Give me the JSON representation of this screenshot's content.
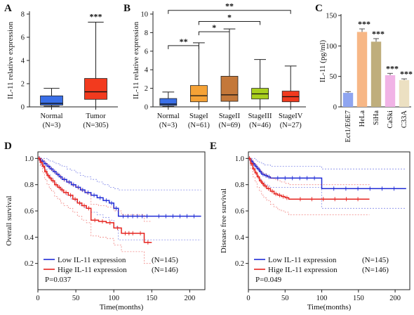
{
  "panels": {
    "a": "A",
    "b": "B",
    "c": "C",
    "d": "D",
    "e": "E"
  },
  "chart_data": [
    {
      "id": "A",
      "type": "box",
      "ylabel": "IL-11 relative expression",
      "ylim": [
        0,
        8
      ],
      "yticks": [
        0,
        2,
        4,
        6,
        8
      ],
      "categories": [
        "Normal",
        "Tumor"
      ],
      "category_n": [
        "(N=3)",
        "(N=305)"
      ],
      "colors": [
        "#3a6fe8",
        "#f23a1e"
      ],
      "boxes": [
        {
          "min": 0.05,
          "q1": 0.15,
          "median": 0.3,
          "q3": 0.95,
          "max": 1.6
        },
        {
          "min": 0.0,
          "q1": 0.65,
          "median": 1.3,
          "q3": 2.45,
          "max": 7.3
        }
      ],
      "annotations": [
        {
          "text": "***",
          "over": 1
        }
      ]
    },
    {
      "id": "B",
      "type": "box",
      "ylabel": "IL-11 relative expression",
      "ylim": [
        0,
        10
      ],
      "yticks": [
        0,
        2,
        4,
        6,
        8,
        10
      ],
      "categories": [
        "Normal",
        "StageI",
        "StageII",
        "StageIII",
        "StageIV"
      ],
      "category_n": [
        "(N=3)",
        "(N=61)",
        "(N=69)",
        "(N=46)",
        "(N=27)"
      ],
      "colors": [
        "#3a6fe8",
        "#f5a236",
        "#c4783a",
        "#a8cf1e",
        "#f03a1e"
      ],
      "boxes": [
        {
          "min": 0.05,
          "q1": 0.15,
          "median": 0.3,
          "q3": 0.9,
          "max": 1.6
        },
        {
          "min": 0.0,
          "q1": 0.55,
          "median": 1.2,
          "q3": 2.3,
          "max": 6.9
        },
        {
          "min": 0.0,
          "q1": 0.6,
          "median": 1.3,
          "q3": 3.3,
          "max": 8.4
        },
        {
          "min": 0.0,
          "q1": 0.85,
          "median": 1.4,
          "q3": 2.0,
          "max": 5.1
        },
        {
          "min": 0.0,
          "q1": 0.55,
          "median": 1.1,
          "q3": 1.7,
          "max": 4.4
        }
      ],
      "brackets": [
        {
          "from": 0,
          "to": 1,
          "text": "**",
          "level": 6.6
        },
        {
          "from": 1,
          "to": 2,
          "text": "*",
          "level": 8.1
        },
        {
          "from": 1,
          "to": 3,
          "text": "*",
          "level": 9.2
        },
        {
          "from": 0,
          "to": 4,
          "text": "**",
          "level": 10.4
        }
      ]
    },
    {
      "id": "C",
      "type": "bar",
      "ylabel": "IL-11 (pg/ml)",
      "ylim": [
        0,
        150
      ],
      "yticks": [
        0,
        50,
        100,
        150
      ],
      "categories": [
        "Ect1/E6E7",
        "HeLa",
        "SiHa",
        "CaSki",
        "C33A"
      ],
      "values": [
        23,
        123,
        107,
        52,
        44
      ],
      "errors": [
        2,
        5,
        5,
        3,
        2
      ],
      "colors": [
        "#8fa5f0",
        "#f7b786",
        "#bfae7c",
        "#f1b3e6",
        "#ece0c2"
      ],
      "annotations": [
        "",
        "***",
        "***",
        "***",
        "***"
      ]
    },
    {
      "id": "D",
      "type": "line",
      "subtype": "kaplan-meier",
      "xlabel": "Time(months)",
      "ylabel": "Overall survival",
      "xlim": [
        0,
        220
      ],
      "ylim": [
        0,
        1.05
      ],
      "xticks": [
        0,
        50,
        100,
        150,
        200
      ],
      "yticks": [
        0.2,
        0.4,
        0.6,
        0.8,
        1.0
      ],
      "pvalue": "P=0.037",
      "series": [
        {
          "name": "Low IL-11 expression",
          "n": "(N=145)",
          "color": "#1f2bd6",
          "x": [
            0,
            4,
            8,
            12,
            16,
            20,
            24,
            28,
            32,
            38,
            44,
            50,
            56,
            62,
            70,
            78,
            86,
            94,
            100,
            106,
            150,
            215
          ],
          "y": [
            1.0,
            0.98,
            0.96,
            0.94,
            0.92,
            0.9,
            0.88,
            0.86,
            0.84,
            0.82,
            0.8,
            0.78,
            0.76,
            0.74,
            0.72,
            0.7,
            0.68,
            0.66,
            0.62,
            0.56,
            0.56,
            0.56
          ],
          "ci_upper": [
            1.0,
            1.0,
            1.0,
            0.99,
            0.98,
            0.97,
            0.96,
            0.95,
            0.94,
            0.92,
            0.91,
            0.89,
            0.87,
            0.86,
            0.84,
            0.82,
            0.8,
            0.78,
            0.77,
            0.76,
            0.76,
            0.76
          ],
          "ci_lower": [
            1.0,
            0.95,
            0.92,
            0.88,
            0.85,
            0.82,
            0.8,
            0.77,
            0.74,
            0.72,
            0.69,
            0.67,
            0.64,
            0.62,
            0.59,
            0.57,
            0.55,
            0.53,
            0.48,
            0.38,
            0.38,
            0.38
          ]
        },
        {
          "name": "Hige IL-11 expression",
          "n": "(N=146)",
          "color": "#e5231e",
          "x": [
            0,
            3,
            6,
            9,
            12,
            15,
            18,
            22,
            26,
            30,
            34,
            40,
            46,
            52,
            58,
            64,
            70,
            80,
            90,
            100,
            110,
            130,
            140,
            150
          ],
          "y": [
            1.0,
            0.97,
            0.94,
            0.9,
            0.87,
            0.85,
            0.83,
            0.8,
            0.78,
            0.76,
            0.74,
            0.72,
            0.69,
            0.66,
            0.64,
            0.62,
            0.53,
            0.52,
            0.51,
            0.47,
            0.43,
            0.43,
            0.36,
            0.36
          ],
          "ci_upper": [
            1.0,
            1.0,
            0.99,
            0.97,
            0.95,
            0.93,
            0.91,
            0.89,
            0.87,
            0.85,
            0.83,
            0.81,
            0.79,
            0.77,
            0.75,
            0.73,
            0.65,
            0.64,
            0.63,
            0.6,
            0.57,
            0.57,
            0.52,
            0.52
          ],
          "ci_lower": [
            1.0,
            0.94,
            0.89,
            0.84,
            0.8,
            0.77,
            0.75,
            0.71,
            0.69,
            0.66,
            0.64,
            0.62,
            0.59,
            0.56,
            0.53,
            0.51,
            0.41,
            0.4,
            0.39,
            0.34,
            0.29,
            0.29,
            0.2,
            0.2
          ]
        }
      ]
    },
    {
      "id": "E",
      "type": "line",
      "subtype": "kaplan-meier",
      "xlabel": "Time(months)",
      "ylabel": "Disease free survival",
      "xlim": [
        0,
        220
      ],
      "ylim": [
        0,
        1.05
      ],
      "xticks": [
        0,
        50,
        100,
        150,
        200
      ],
      "yticks": [
        0.2,
        0.4,
        0.6,
        0.8,
        1.0
      ],
      "pvalue": "P=0.049",
      "series": [
        {
          "name": "Low IL-11 expression",
          "n": "(N=145)",
          "color": "#1f2bd6",
          "x": [
            0,
            3,
            6,
            9,
            12,
            15,
            18,
            22,
            26,
            30,
            100,
            215
          ],
          "y": [
            1.0,
            0.98,
            0.96,
            0.94,
            0.92,
            0.9,
            0.88,
            0.87,
            0.86,
            0.85,
            0.77,
            0.77
          ],
          "ci_upper": [
            1.0,
            1.0,
            1.0,
            0.99,
            0.98,
            0.97,
            0.96,
            0.95,
            0.95,
            0.94,
            0.92,
            0.92
          ],
          "ci_lower": [
            1.0,
            0.95,
            0.92,
            0.89,
            0.86,
            0.84,
            0.82,
            0.8,
            0.79,
            0.78,
            0.62,
            0.62
          ]
        },
        {
          "name": "Hige IL-11 expression",
          "n": "(N=146)",
          "color": "#e5231e",
          "x": [
            0,
            3,
            6,
            9,
            12,
            15,
            18,
            21,
            25,
            30,
            35,
            40,
            45,
            50,
            55,
            165
          ],
          "y": [
            1.0,
            0.96,
            0.92,
            0.89,
            0.86,
            0.83,
            0.81,
            0.79,
            0.77,
            0.75,
            0.73,
            0.72,
            0.71,
            0.7,
            0.69,
            0.69
          ],
          "ci_upper": [
            1.0,
            0.99,
            0.97,
            0.95,
            0.93,
            0.91,
            0.89,
            0.88,
            0.86,
            0.85,
            0.84,
            0.83,
            0.82,
            0.81,
            0.8,
            0.8
          ],
          "ci_lower": [
            1.0,
            0.92,
            0.86,
            0.82,
            0.78,
            0.75,
            0.72,
            0.7,
            0.68,
            0.65,
            0.63,
            0.61,
            0.6,
            0.59,
            0.57,
            0.57
          ]
        }
      ]
    }
  ]
}
